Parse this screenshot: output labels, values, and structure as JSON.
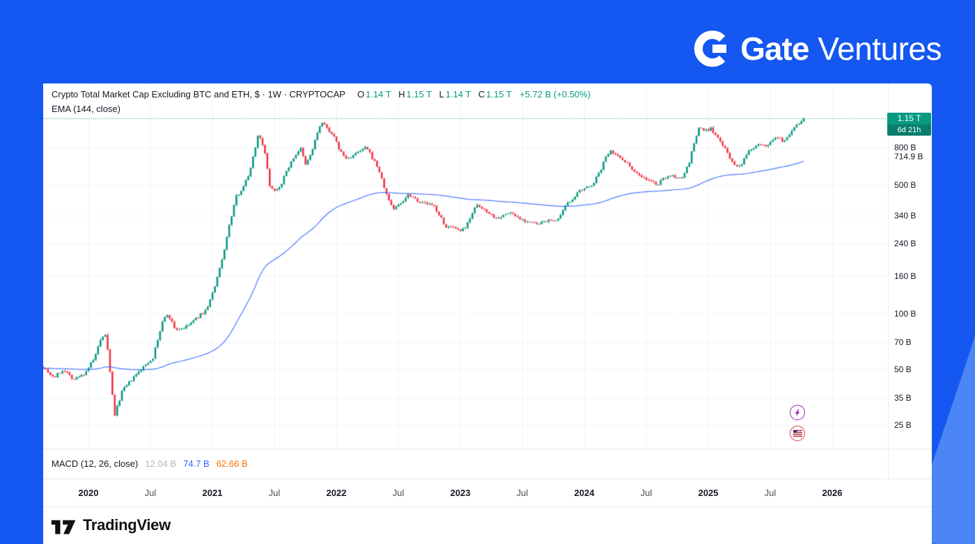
{
  "theme": {
    "background": "#1457F1",
    "corner_accent": "#4C86F6",
    "panel": "#FFFFFF"
  },
  "brand": {
    "gate": "Gate",
    "ventures": "Ventures"
  },
  "chart": {
    "legend": {
      "title": "Crypto Total Market Cap Excluding BTC and ETH, $ · 1W · CRYPTOCAP",
      "open_label": "O",
      "open": "1.14 T",
      "high_label": "H",
      "high": "1.15 T",
      "low_label": "L",
      "low": "1.14 T",
      "close_label": "C",
      "close": "1.15 T",
      "change": "+5.72 B (+0.50%)",
      "ema": "EMA (144, close)"
    },
    "price_badge": {
      "value": "1.15 T",
      "countdown": "6d 21h"
    },
    "macd": {
      "label": "MACD (12, 26, close)",
      "histogram_value": "12.04 B",
      "macd_value": "74.7 B",
      "signal_value": "62.66 B"
    }
  },
  "footer": {
    "brand": "TradingView"
  },
  "chart_data": {
    "type": "candlestick",
    "title": "Crypto Total Market Cap Excluding BTC and ETH",
    "symbol": "CRYPTOCAP",
    "timeframe": "1W",
    "units": "USD billions",
    "scale": "logarithmic",
    "current_value_billions": 1150,
    "ema_period": 144,
    "ema_current_billions": 714.9,
    "colors": {
      "up": "#089981",
      "down": "#F23645",
      "ema": "#2962FF",
      "grid": "#F0F3FA",
      "price_line": "#089981"
    },
    "y_axis": {
      "ticks": [
        {
          "label": "800 B",
          "value": 800
        },
        {
          "label": "714.9 B",
          "value": 714.9,
          "grid": false
        },
        {
          "label": "500 B",
          "value": 500
        },
        {
          "label": "340 B",
          "value": 340
        },
        {
          "label": "240 B",
          "value": 240
        },
        {
          "label": "160 B",
          "value": 160
        },
        {
          "label": "100 B",
          "value": 100
        },
        {
          "label": "70 B",
          "value": 70
        },
        {
          "label": "50 B",
          "value": 50
        },
        {
          "label": "35 B",
          "value": 35
        },
        {
          "label": "25 B",
          "value": 25
        }
      ]
    },
    "x_axis": {
      "ticks": [
        {
          "label": "2020",
          "t": 2020,
          "major": true
        },
        {
          "label": "Jul",
          "t": 2020.5,
          "major": false
        },
        {
          "label": "2021",
          "t": 2021,
          "major": true
        },
        {
          "label": "Jul",
          "t": 2021.5,
          "major": false
        },
        {
          "label": "2022",
          "t": 2022,
          "major": true
        },
        {
          "label": "Jul",
          "t": 2022.5,
          "major": false
        },
        {
          "label": "2023",
          "t": 2023,
          "major": true
        },
        {
          "label": "Jul",
          "t": 2023.5,
          "major": false
        },
        {
          "label": "2024",
          "t": 2024,
          "major": true
        },
        {
          "label": "Jul",
          "t": 2024.5,
          "major": false
        },
        {
          "label": "2025",
          "t": 2025,
          "major": true
        },
        {
          "label": "Jul",
          "t": 2025.5,
          "major": false
        },
        {
          "label": "2026",
          "t": 2026,
          "major": true
        }
      ]
    },
    "markers": [
      {
        "icon": "lightning",
        "color": "#9C27B0",
        "t": 2025.72,
        "v": 29
      },
      {
        "icon": "us-flag",
        "color": "#F23645",
        "t": 2025.72,
        "v": 22.5
      }
    ],
    "anchors_weekly_close_billions": [
      [
        2019.63,
        52
      ],
      [
        2019.72,
        45
      ],
      [
        2019.8,
        50
      ],
      [
        2019.88,
        44
      ],
      [
        2019.96,
        47
      ],
      [
        2020.04,
        56
      ],
      [
        2020.1,
        72
      ],
      [
        2020.14,
        78
      ],
      [
        2020.21,
        28
      ],
      [
        2020.27,
        38
      ],
      [
        2020.35,
        44
      ],
      [
        2020.45,
        52
      ],
      [
        2020.52,
        58
      ],
      [
        2020.6,
        92
      ],
      [
        2020.64,
        100
      ],
      [
        2020.7,
        82
      ],
      [
        2020.78,
        84
      ],
      [
        2020.85,
        92
      ],
      [
        2020.95,
        105
      ],
      [
        2021.02,
        140
      ],
      [
        2021.08,
        200
      ],
      [
        2021.13,
        290
      ],
      [
        2021.19,
        430
      ],
      [
        2021.24,
        480
      ],
      [
        2021.29,
        560
      ],
      [
        2021.33,
        720
      ],
      [
        2021.37,
        950
      ],
      [
        2021.4,
        860
      ],
      [
        2021.43,
        700
      ],
      [
        2021.46,
        500
      ],
      [
        2021.5,
        465
      ],
      [
        2021.55,
        500
      ],
      [
        2021.61,
        620
      ],
      [
        2021.67,
        730
      ],
      [
        2021.71,
        790
      ],
      [
        2021.75,
        640
      ],
      [
        2021.8,
        750
      ],
      [
        2021.85,
        980
      ],
      [
        2021.88,
        1090
      ],
      [
        2021.92,
        1020
      ],
      [
        2021.97,
        940
      ],
      [
        2022.03,
        760
      ],
      [
        2022.08,
        690
      ],
      [
        2022.13,
        720
      ],
      [
        2022.19,
        760
      ],
      [
        2022.24,
        800
      ],
      [
        2022.29,
        700
      ],
      [
        2022.34,
        610
      ],
      [
        2022.37,
        520
      ],
      [
        2022.41,
        430
      ],
      [
        2022.46,
        370
      ],
      [
        2022.52,
        400
      ],
      [
        2022.58,
        445
      ],
      [
        2022.62,
        430
      ],
      [
        2022.68,
        400
      ],
      [
        2022.74,
        395
      ],
      [
        2022.79,
        380
      ],
      [
        2022.84,
        335
      ],
      [
        2022.87,
        300
      ],
      [
        2022.93,
        292
      ],
      [
        2022.99,
        280
      ],
      [
        2023.04,
        290
      ],
      [
        2023.09,
        350
      ],
      [
        2023.13,
        385
      ],
      [
        2023.18,
        370
      ],
      [
        2023.23,
        355
      ],
      [
        2023.28,
        330
      ],
      [
        2023.34,
        340
      ],
      [
        2023.4,
        355
      ],
      [
        2023.46,
        335
      ],
      [
        2023.52,
        320
      ],
      [
        2023.58,
        310
      ],
      [
        2023.64,
        305
      ],
      [
        2023.68,
        320
      ],
      [
        2023.74,
        318
      ],
      [
        2023.8,
        330
      ],
      [
        2023.85,
        385
      ],
      [
        2023.9,
        420
      ],
      [
        2023.96,
        460
      ],
      [
        2024.02,
        480
      ],
      [
        2024.07,
        510
      ],
      [
        2024.12,
        580
      ],
      [
        2024.17,
        700
      ],
      [
        2024.21,
        780
      ],
      [
        2024.26,
        720
      ],
      [
        2024.31,
        690
      ],
      [
        2024.36,
        640
      ],
      [
        2024.42,
        580
      ],
      [
        2024.48,
        545
      ],
      [
        2024.54,
        520
      ],
      [
        2024.59,
        500
      ],
      [
        2024.64,
        545
      ],
      [
        2024.69,
        565
      ],
      [
        2024.74,
        540
      ],
      [
        2024.79,
        555
      ],
      [
        2024.84,
        640
      ],
      [
        2024.88,
        820
      ],
      [
        2024.93,
        1040
      ],
      [
        2024.97,
        980
      ],
      [
        2025.02,
        1010
      ],
      [
        2025.07,
        900
      ],
      [
        2025.12,
        820
      ],
      [
        2025.17,
        700
      ],
      [
        2025.22,
        640
      ],
      [
        2025.26,
        620
      ],
      [
        2025.31,
        740
      ],
      [
        2025.36,
        800
      ],
      [
        2025.41,
        850
      ],
      [
        2025.46,
        800
      ],
      [
        2025.51,
        870
      ],
      [
        2025.56,
        900
      ],
      [
        2025.6,
        860
      ],
      [
        2025.65,
        940
      ],
      [
        2025.7,
        1030
      ],
      [
        2025.74,
        1090
      ],
      [
        2025.78,
        1150
      ]
    ]
  }
}
